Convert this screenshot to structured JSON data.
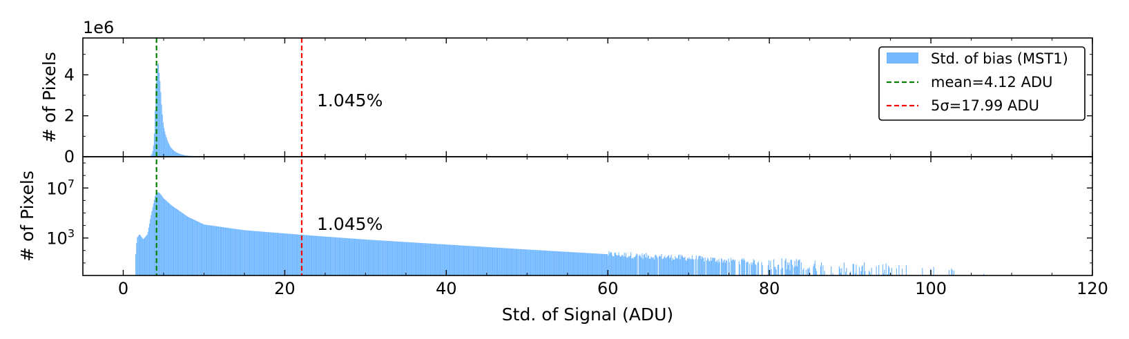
{
  "chart_data": {
    "type": "bar",
    "layout": "two stacked panels sharing x-axis",
    "xlabel": "Std. of Signal (ADU)",
    "xlim": [
      -5,
      120
    ],
    "x_ticks": [
      0,
      20,
      40,
      60,
      80,
      100,
      120
    ],
    "bar_color": "#74b9ff",
    "annotation": "1.045%",
    "legend": {
      "placement": "top-right",
      "entries": [
        {
          "label": "Std. of bias (MST1)",
          "kind": "patch",
          "color": "#74b9ff"
        },
        {
          "label": "mean=4.12 ADU",
          "kind": "dashed-line",
          "color": "#008000"
        },
        {
          "label": "5σ=17.99 ADU",
          "kind": "dashed-line",
          "color": "#ff0000"
        }
      ]
    },
    "vlines": [
      {
        "name": "mean",
        "x": 4.12,
        "color": "#008000"
      },
      {
        "name": "5sigma",
        "x": 22.1,
        "color": "#ff0000"
      }
    ],
    "panels": [
      {
        "name": "linear",
        "ylabel": "# of Pixels",
        "yscale": "linear",
        "ylim": [
          0,
          5.8
        ],
        "y_offset_text": "1e6",
        "y_ticks": [
          {
            "value": 0,
            "label": "0"
          },
          {
            "value": 2,
            "label": "2"
          },
          {
            "value": 4,
            "label": "4"
          }
        ]
      },
      {
        "name": "log",
        "ylabel": "# of Pixels",
        "yscale": "log",
        "ylim_log10": [
          0,
          9.5
        ],
        "y_ticks": [
          {
            "log10": 3,
            "base": "10",
            "exp": "3"
          },
          {
            "log10": 7,
            "base": "10",
            "exp": "7"
          }
        ]
      }
    ],
    "histogram_points": {
      "x": [
        1.5,
        1.7,
        2.0,
        2.5,
        3.0,
        3.5,
        4.0,
        4.3,
        4.6,
        5.0,
        6.0,
        8.0,
        10.0,
        15.0,
        20.0,
        25.0,
        30.0,
        40.0,
        50.0,
        60.0,
        70.0,
        80.0,
        85.0,
        90.0,
        95.0,
        100.0,
        110.0,
        112.0
      ],
      "counts": [
        20,
        1000,
        2000,
        800,
        2000,
        100000.0,
        3200000.0,
        4800000.0,
        3500000.0,
        1500000.0,
        400000.0,
        50000.0,
        12000.0,
        4200,
        2300,
        1300,
        750,
        300,
        120,
        50,
        25,
        10,
        6,
        4,
        3,
        2,
        1,
        1
      ]
    }
  }
}
